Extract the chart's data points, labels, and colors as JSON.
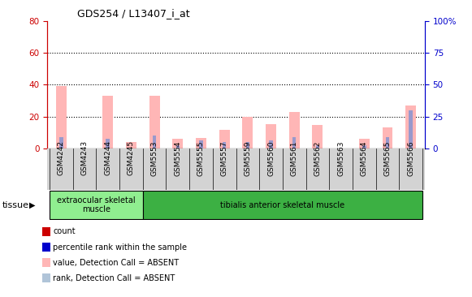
{
  "title": "GDS254 / L13407_i_at",
  "categories": [
    "GSM4242",
    "GSM4243",
    "GSM4244",
    "GSM4245",
    "GSM5553",
    "GSM5554",
    "GSM5555",
    "GSM5557",
    "GSM5559",
    "GSM5560",
    "GSM5561",
    "GSM5562",
    "GSM5563",
    "GSM5564",
    "GSM5565",
    "GSM5566"
  ],
  "pink_bars": [
    39,
    0,
    33,
    4,
    33,
    6,
    6.5,
    11.5,
    20,
    15.5,
    23,
    14.5,
    0,
    6,
    13,
    27
  ],
  "blue_bars": [
    7,
    0,
    6,
    0,
    8,
    2,
    5,
    4,
    4,
    5,
    7,
    2,
    0,
    2,
    7,
    24
  ],
  "ylim_left": [
    0,
    80
  ],
  "ylim_right": [
    0,
    100
  ],
  "yticks_left": [
    0,
    20,
    40,
    60,
    80
  ],
  "yticks_right": [
    0,
    25,
    50,
    75,
    100
  ],
  "yticklabels_right": [
    "0",
    "25",
    "50",
    "75",
    "100%"
  ],
  "grid_values": [
    20,
    40,
    60
  ],
  "tissue_groups": [
    {
      "label": "extraocular skeletal\nmuscle",
      "start": 0,
      "end": 4,
      "color": "#90ee90"
    },
    {
      "label": "tibialis anterior skeletal muscle",
      "start": 4,
      "end": 16,
      "color": "#3cb043"
    }
  ],
  "tissue_label": "tissue",
  "legend_items": [
    {
      "color": "#cc0000",
      "label": "count"
    },
    {
      "color": "#0000cc",
      "label": "percentile rank within the sample"
    },
    {
      "color": "#ffb6b6",
      "label": "value, Detection Call = ABSENT"
    },
    {
      "color": "#b0c4d8",
      "label": "rank, Detection Call = ABSENT"
    }
  ],
  "bar_width": 0.45,
  "axis_color_left": "#cc0000",
  "axis_color_right": "#0000cc",
  "pink_color": "#ffb6b6",
  "blue_color": "#9999cc",
  "tick_bg_color": "#d3d3d3"
}
